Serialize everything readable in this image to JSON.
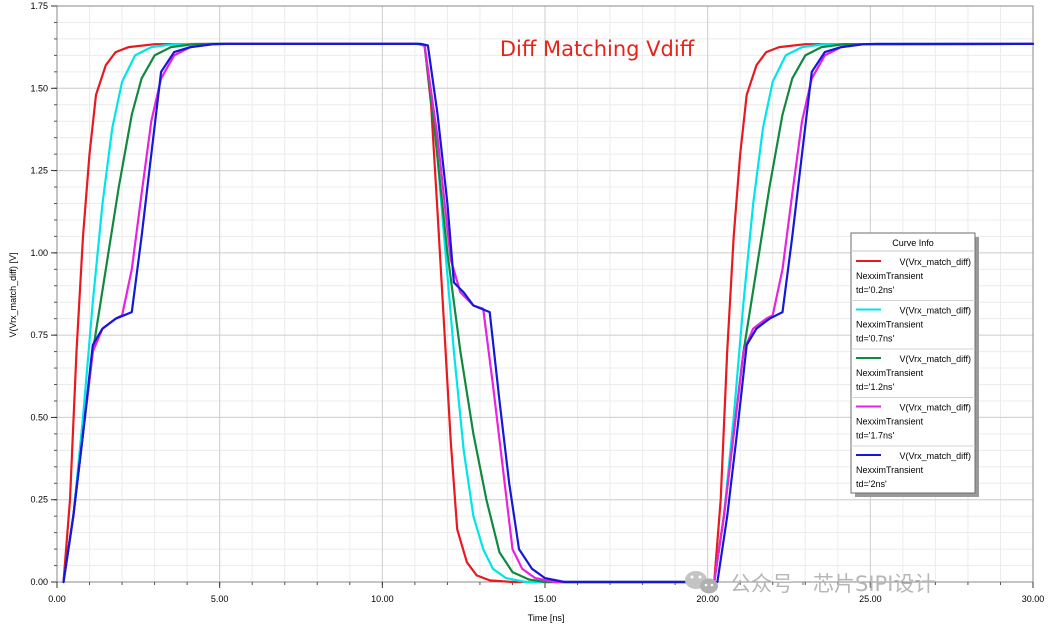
{
  "chart_data": {
    "type": "line",
    "title": "Diff Matching Vdiff",
    "xlabel": "Time [ns]",
    "ylabel": "V(Vrx_match_diff) [V]",
    "xlim": [
      0,
      30
    ],
    "ylim": [
      0,
      1.75
    ],
    "xticks": [
      "0.00",
      "5.00",
      "10.00",
      "15.00",
      "20.00",
      "25.00",
      "30.00"
    ],
    "yticks": [
      "0.00",
      "0.25",
      "0.50",
      "0.75",
      "1.00",
      "1.25",
      "1.50",
      "1.75"
    ],
    "grid": true,
    "legend": {
      "title": "Curve Info",
      "position": "right"
    },
    "series": [
      {
        "name": "V(Vrx_match_diff)",
        "setup": "NexximTransient",
        "param": "td='0.2ns'",
        "color": "#e8191f",
        "points": [
          [
            0.2,
            0
          ],
          [
            0.4,
            0.25
          ],
          [
            0.6,
            0.7
          ],
          [
            0.8,
            1.05
          ],
          [
            1.0,
            1.3
          ],
          [
            1.2,
            1.48
          ],
          [
            1.5,
            1.57
          ],
          [
            1.8,
            1.61
          ],
          [
            2.2,
            1.625
          ],
          [
            3.0,
            1.634
          ],
          [
            5,
            1.635
          ],
          [
            11.1,
            1.635
          ],
          [
            11.3,
            1.63
          ],
          [
            11.5,
            1.45
          ],
          [
            11.7,
            1.12
          ],
          [
            11.9,
            0.78
          ],
          [
            12.1,
            0.43
          ],
          [
            12.3,
            0.16
          ],
          [
            12.6,
            0.06
          ],
          [
            12.9,
            0.02
          ],
          [
            13.3,
            0.005
          ],
          [
            14,
            0
          ],
          [
            20.2,
            0
          ],
          [
            20.4,
            0.25
          ],
          [
            20.6,
            0.7
          ],
          [
            20.8,
            1.05
          ],
          [
            21,
            1.3
          ],
          [
            21.2,
            1.48
          ],
          [
            21.5,
            1.57
          ],
          [
            21.8,
            1.61
          ],
          [
            22.2,
            1.625
          ],
          [
            23,
            1.634
          ],
          [
            30,
            1.635
          ]
        ]
      },
      {
        "name": "V(Vrx_match_diff)",
        "setup": "NexximTransient",
        "param": "td='0.7ns'",
        "color": "#00e5e8",
        "points": [
          [
            0.2,
            0
          ],
          [
            0.5,
            0.2
          ],
          [
            0.8,
            0.5
          ],
          [
            1.1,
            0.85
          ],
          [
            1.4,
            1.15
          ],
          [
            1.7,
            1.38
          ],
          [
            2.0,
            1.52
          ],
          [
            2.4,
            1.6
          ],
          [
            2.9,
            1.625
          ],
          [
            3.6,
            1.634
          ],
          [
            5,
            1.635
          ],
          [
            11.1,
            1.635
          ],
          [
            11.3,
            1.63
          ],
          [
            11.6,
            1.4
          ],
          [
            11.9,
            1.05
          ],
          [
            12.2,
            0.7
          ],
          [
            12.5,
            0.4
          ],
          [
            12.8,
            0.2
          ],
          [
            13.1,
            0.1
          ],
          [
            13.4,
            0.04
          ],
          [
            13.8,
            0.012
          ],
          [
            14.4,
            0
          ],
          [
            20.2,
            0
          ],
          [
            20.5,
            0.2
          ],
          [
            20.8,
            0.5
          ],
          [
            21.1,
            0.85
          ],
          [
            21.4,
            1.15
          ],
          [
            21.7,
            1.38
          ],
          [
            22,
            1.52
          ],
          [
            22.4,
            1.6
          ],
          [
            22.9,
            1.625
          ],
          [
            23.6,
            1.634
          ],
          [
            30,
            1.635
          ]
        ]
      },
      {
        "name": "V(Vrx_match_diff)",
        "setup": "NexximTransient",
        "param": "td='1.2ns'",
        "color": "#108a3e",
        "points": [
          [
            0.2,
            0
          ],
          [
            0.5,
            0.2
          ],
          [
            0.8,
            0.45
          ],
          [
            1.1,
            0.7
          ],
          [
            1.5,
            0.95
          ],
          [
            1.9,
            1.2
          ],
          [
            2.3,
            1.42
          ],
          [
            2.6,
            1.53
          ],
          [
            3.0,
            1.6
          ],
          [
            3.5,
            1.625
          ],
          [
            4.2,
            1.634
          ],
          [
            5,
            1.635
          ],
          [
            11.1,
            1.635
          ],
          [
            11.3,
            1.63
          ],
          [
            11.6,
            1.38
          ],
          [
            12.0,
            1.0
          ],
          [
            12.4,
            0.7
          ],
          [
            12.8,
            0.45
          ],
          [
            13.2,
            0.25
          ],
          [
            13.6,
            0.09
          ],
          [
            14.0,
            0.03
          ],
          [
            14.5,
            0.008
          ],
          [
            15.0,
            0
          ],
          [
            20.2,
            0
          ],
          [
            20.5,
            0.2
          ],
          [
            20.8,
            0.45
          ],
          [
            21.1,
            0.7
          ],
          [
            21.5,
            0.95
          ],
          [
            21.9,
            1.2
          ],
          [
            22.3,
            1.42
          ],
          [
            22.6,
            1.53
          ],
          [
            23,
            1.6
          ],
          [
            23.5,
            1.625
          ],
          [
            24.2,
            1.634
          ],
          [
            30,
            1.635
          ]
        ]
      },
      {
        "name": "V(Vrx_match_diff)",
        "setup": "NexximTransient",
        "param": "td='1.7ns'",
        "color": "#e822e0",
        "points": [
          [
            0.2,
            0
          ],
          [
            0.5,
            0.2
          ],
          [
            0.8,
            0.45
          ],
          [
            1.1,
            0.7
          ],
          [
            1.4,
            0.77
          ],
          [
            1.8,
            0.8
          ],
          [
            2.0,
            0.81
          ],
          [
            2.3,
            0.95
          ],
          [
            2.6,
            1.18
          ],
          [
            2.9,
            1.4
          ],
          [
            3.2,
            1.53
          ],
          [
            3.6,
            1.6
          ],
          [
            4.1,
            1.625
          ],
          [
            4.8,
            1.634
          ],
          [
            5.2,
            1.635
          ],
          [
            11.1,
            1.635
          ],
          [
            11.3,
            1.63
          ],
          [
            11.7,
            1.35
          ],
          [
            12.1,
            0.98
          ],
          [
            12.4,
            0.88
          ],
          [
            12.8,
            0.84
          ],
          [
            13.1,
            0.83
          ],
          [
            13.4,
            0.6
          ],
          [
            13.7,
            0.35
          ],
          [
            14.0,
            0.1
          ],
          [
            14.3,
            0.04
          ],
          [
            14.7,
            0.012
          ],
          [
            15.3,
            0
          ],
          [
            20.2,
            0
          ],
          [
            20.5,
            0.2
          ],
          [
            20.8,
            0.45
          ],
          [
            21.1,
            0.7
          ],
          [
            21.4,
            0.77
          ],
          [
            21.8,
            0.8
          ],
          [
            22,
            0.81
          ],
          [
            22.3,
            0.95
          ],
          [
            22.6,
            1.18
          ],
          [
            22.9,
            1.4
          ],
          [
            23.2,
            1.53
          ],
          [
            23.6,
            1.6
          ],
          [
            24.1,
            1.625
          ],
          [
            24.8,
            1.634
          ],
          [
            30,
            1.635
          ]
        ]
      },
      {
        "name": "V(Vrx_match_diff)",
        "setup": "NexximTransient",
        "param": "td='2ns'",
        "color": "#1418d8",
        "points": [
          [
            0.2,
            0
          ],
          [
            0.5,
            0.2
          ],
          [
            0.8,
            0.45
          ],
          [
            1.1,
            0.72
          ],
          [
            1.4,
            0.77
          ],
          [
            1.8,
            0.8
          ],
          [
            2.3,
            0.82
          ],
          [
            2.6,
            1.05
          ],
          [
            2.9,
            1.3
          ],
          [
            3.2,
            1.55
          ],
          [
            3.6,
            1.61
          ],
          [
            4.1,
            1.625
          ],
          [
            4.8,
            1.634
          ],
          [
            5.2,
            1.635
          ],
          [
            11.2,
            1.635
          ],
          [
            11.4,
            1.63
          ],
          [
            11.7,
            1.42
          ],
          [
            12.0,
            1.15
          ],
          [
            12.2,
            0.91
          ],
          [
            12.5,
            0.88
          ],
          [
            12.8,
            0.84
          ],
          [
            13.3,
            0.82
          ],
          [
            13.6,
            0.55
          ],
          [
            13.9,
            0.3
          ],
          [
            14.2,
            0.1
          ],
          [
            14.6,
            0.04
          ],
          [
            15.0,
            0.012
          ],
          [
            15.6,
            0
          ],
          [
            20.3,
            0
          ],
          [
            20.6,
            0.2
          ],
          [
            20.9,
            0.45
          ],
          [
            21.2,
            0.72
          ],
          [
            21.5,
            0.77
          ],
          [
            21.9,
            0.8
          ],
          [
            22.3,
            0.82
          ],
          [
            22.6,
            1.05
          ],
          [
            22.9,
            1.3
          ],
          [
            23.2,
            1.55
          ],
          [
            23.6,
            1.61
          ],
          [
            24.1,
            1.625
          ],
          [
            24.8,
            1.634
          ],
          [
            25.2,
            1.635
          ],
          [
            30,
            1.635
          ]
        ]
      }
    ]
  },
  "watermark": {
    "icon": "wechat-icon",
    "text": "公众号 · 芯片SIPI设计"
  }
}
